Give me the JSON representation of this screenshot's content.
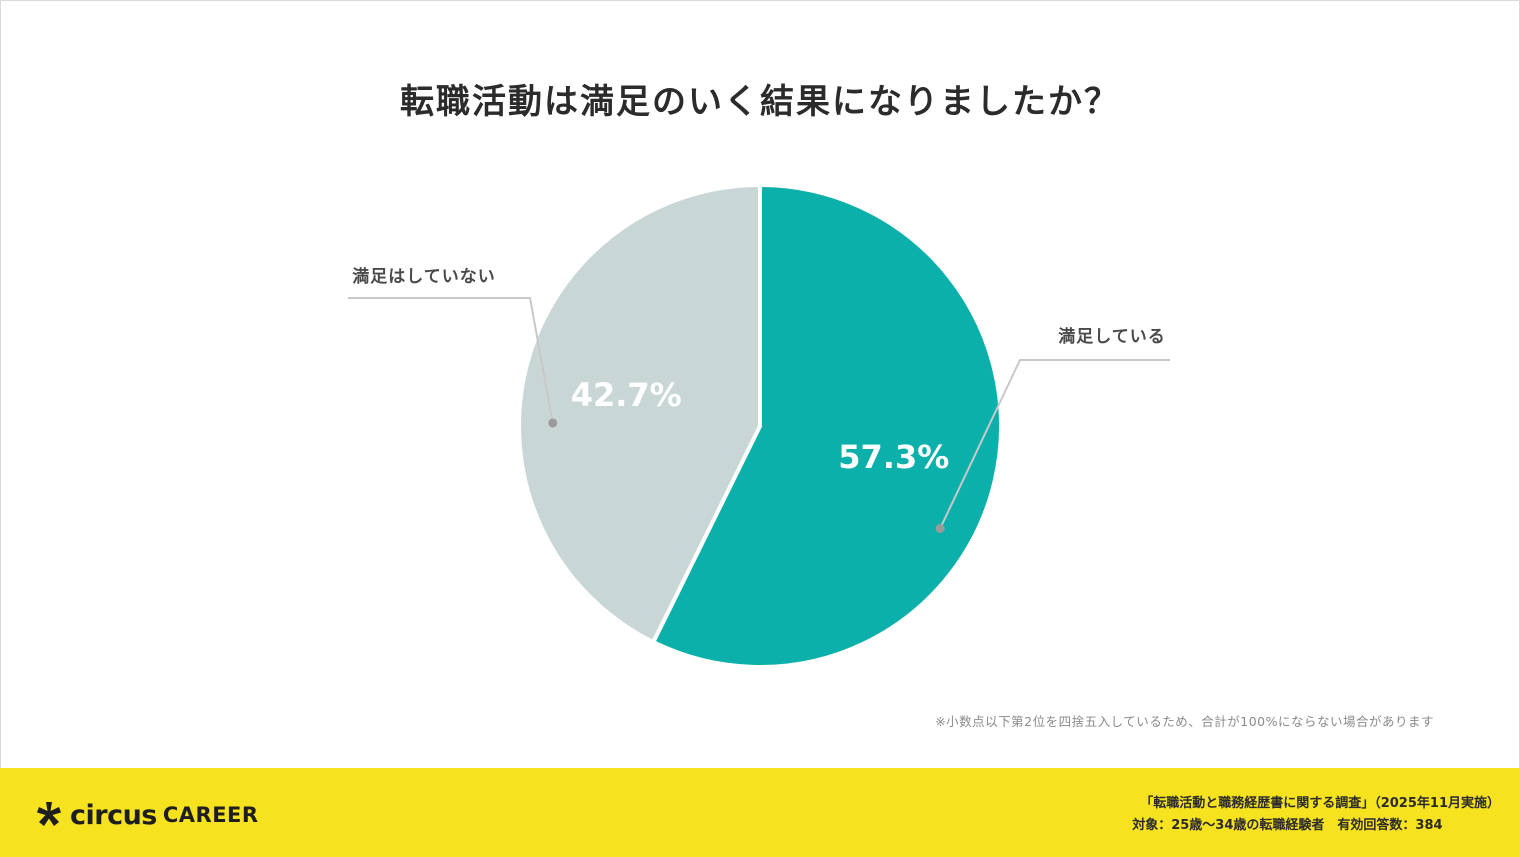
{
  "chart_data": {
    "type": "pie",
    "title": "転職活動は満足のいく結果になりましたか？",
    "slices": [
      {
        "label": "満足している",
        "value": 57.3,
        "value_label": "57.3%",
        "color": "#0bb0ab"
      },
      {
        "label": "満足はしていない",
        "value": 42.7,
        "value_label": "42.7%",
        "color": "#c9d6d6"
      }
    ],
    "start": "12 o'clock",
    "direction": "clockwise"
  },
  "note": "※小数点以下第2位を四捨五入しているため、合計が100%にならない場合があります",
  "footer": {
    "logo_main": "circus",
    "logo_sub": "CAREER",
    "survey_line": "「転職活動と職務経歴書に関する調査」（2025年11月実施）",
    "target_line": "対象：25歳〜34歳の転職経験者　有効回答数：384"
  },
  "colors": {
    "footer_bg": "#f6e21f",
    "leader_line": "#c8c8c8"
  }
}
